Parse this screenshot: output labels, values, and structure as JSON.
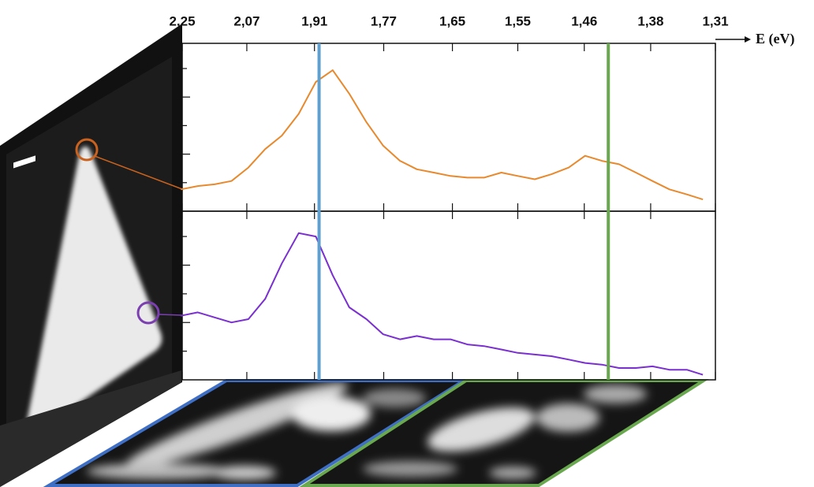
{
  "chart_data": [
    {
      "type": "line",
      "xlabel": "E (eV)",
      "scale": "reciprocal",
      "xlim": [
        2.25,
        1.31
      ],
      "xticks": [
        {
          "value": 2.25,
          "label": "2,25"
        },
        {
          "value": 2.07,
          "label": "2,07"
        },
        {
          "value": 1.91,
          "label": "1,91"
        },
        {
          "value": 1.77,
          "label": "1,77"
        },
        {
          "value": 1.65,
          "label": "1,65"
        },
        {
          "value": 1.55,
          "label": "1,55"
        },
        {
          "value": 1.46,
          "label": "1,46"
        },
        {
          "value": 1.38,
          "label": "1,38"
        },
        {
          "value": 1.31,
          "label": "1,31"
        }
      ],
      "ylim": [
        0,
        1
      ],
      "yticks": [
        0.17,
        0.34,
        0.51,
        0.68,
        0.85
      ],
      "markers": [
        {
          "x": 1.9,
          "color": "#5ea0d0"
        },
        {
          "x": 1.43,
          "color": "#6aa84f"
        }
      ],
      "x": [
        2.254,
        2.204,
        2.156,
        2.11,
        2.066,
        2.024,
        1.984,
        1.945,
        1.907,
        1.871,
        1.837,
        1.803,
        1.771,
        1.74,
        1.71,
        1.681,
        1.653,
        1.626,
        1.6,
        1.574,
        1.55,
        1.526,
        1.503,
        1.48,
        1.459,
        1.438,
        1.417,
        1.397,
        1.378,
        1.359,
        1.34,
        1.323
      ],
      "series": [
        {
          "color": "#e8892d",
          "values": [
            0.13,
            0.15,
            0.16,
            0.18,
            0.26,
            0.37,
            0.45,
            0.58,
            0.77,
            0.84,
            0.7,
            0.53,
            0.39,
            0.3,
            0.25,
            0.23,
            0.21,
            0.2,
            0.2,
            0.23,
            0.21,
            0.19,
            0.22,
            0.26,
            0.33,
            0.3,
            0.28,
            0.23,
            0.18,
            0.13,
            0.1,
            0.07
          ]
        }
      ]
    },
    {
      "type": "line",
      "scale": "reciprocal",
      "xlim": [
        2.25,
        1.31
      ],
      "ylim": [
        0,
        1
      ],
      "yticks": [
        0.17,
        0.34,
        0.51,
        0.68,
        0.85
      ],
      "x": [
        2.254,
        2.204,
        2.156,
        2.11,
        2.066,
        2.024,
        1.984,
        1.945,
        1.907,
        1.871,
        1.837,
        1.803,
        1.771,
        1.74,
        1.71,
        1.681,
        1.653,
        1.626,
        1.6,
        1.574,
        1.55,
        1.526,
        1.503,
        1.48,
        1.459,
        1.438,
        1.417,
        1.397,
        1.378,
        1.359,
        1.34,
        1.323
      ],
      "series": [
        {
          "color": "#7a2fd0",
          "values": [
            0.38,
            0.4,
            0.37,
            0.34,
            0.36,
            0.48,
            0.69,
            0.87,
            0.85,
            0.62,
            0.43,
            0.36,
            0.27,
            0.24,
            0.26,
            0.24,
            0.24,
            0.21,
            0.2,
            0.18,
            0.16,
            0.15,
            0.14,
            0.12,
            0.1,
            0.09,
            0.07,
            0.07,
            0.08,
            0.06,
            0.06,
            0.03
          ]
        }
      ]
    }
  ]
}
